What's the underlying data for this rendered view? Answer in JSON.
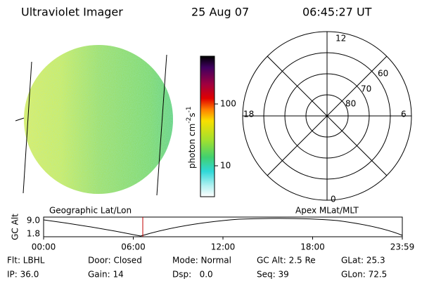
{
  "header": {
    "instrument": "Ultraviolet Imager",
    "date": "25 Aug 07",
    "time": "06:45:27 UT"
  },
  "colorbar": {
    "label": "photon cm",
    "exp1": "-2",
    "mid": "s",
    "exp2": "-1",
    "ticks": [
      "100",
      "10"
    ]
  },
  "polar": {
    "mlt_labels": [
      "12",
      "6",
      "0",
      "18"
    ],
    "lat_labels": [
      "60",
      "70",
      "80"
    ]
  },
  "panel_labels": [
    "Geographic Lat/Lon",
    "Apex MLat/MLT"
  ],
  "altitude": {
    "axis_label": "GC Alt",
    "y_labels": [
      "9.0",
      "1.8"
    ],
    "x_labels": [
      "00:00",
      "06:00",
      "12:00",
      "18:00",
      "23:59"
    ]
  },
  "info": [
    [
      "Flt: LBHL",
      "Door: Closed",
      "Mode: Normal",
      "GC Alt: 2.5 Re",
      "GLat: 25.3"
    ],
    [
      "IP: 36.0",
      "Gain: 14",
      "Dsp:   0.0",
      "Seq: 39",
      "GLon: 72.5"
    ]
  ]
}
